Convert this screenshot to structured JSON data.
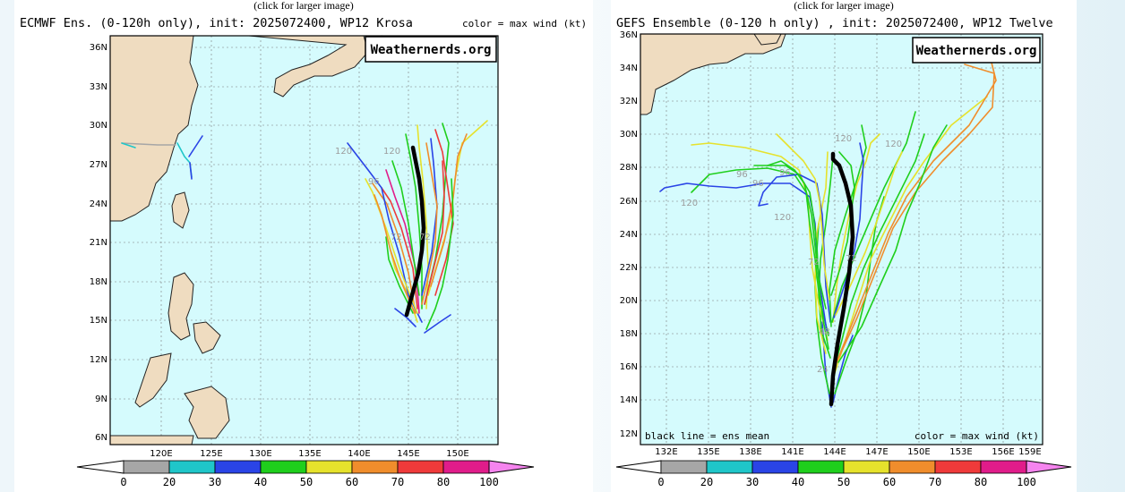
{
  "left": {
    "caption": "(click for larger image)",
    "title": "ECMWF Ens. (0-120h only), init: 2025072400, WP12 Krosa",
    "top_right_label": "color = max wind (kt)",
    "watermark": "Weathernerds.org",
    "lat_ticks": [
      "36N",
      "33N",
      "30N",
      "27N",
      "24N",
      "21N",
      "18N",
      "15N",
      "12N",
      "9N",
      "6N"
    ],
    "lon_ticks": [
      "120E",
      "125E",
      "130E",
      "135E",
      "140E",
      "145E",
      "150E"
    ],
    "hour_labels": [
      "120",
      "96",
      "120",
      "72",
      "72"
    ]
  },
  "right": {
    "caption": "(click for larger image)",
    "title": "GEFS Ensemble (0-120 h only) , init: 2025072400, WP12 Twelve",
    "bottom_left_label": "black line = ens mean",
    "bottom_right_label": "color = max wind (kt)",
    "watermark": "Weathernerds.org",
    "lat_ticks": [
      "36N",
      "34N",
      "32N",
      "30N",
      "28N",
      "26N",
      "24N",
      "22N",
      "20N",
      "18N",
      "16N",
      "14N",
      "12N"
    ],
    "lon_ticks": [
      "132E",
      "135E",
      "138E",
      "141E",
      "144E",
      "147E",
      "150E",
      "153E",
      "156E",
      "159E"
    ],
    "hour_labels": [
      "120",
      "96",
      "120",
      "96",
      "120",
      "72",
      "72",
      "48",
      "24",
      "96",
      "120"
    ]
  },
  "colorbar": {
    "labels": [
      "0",
      "20",
      "30",
      "40",
      "50",
      "60",
      "70",
      "80",
      "100"
    ],
    "colors": [
      "#a6a6a6",
      "#1fc6c9",
      "#2a44e6",
      "#1fcf1c",
      "#e6e22c",
      "#f08d2c",
      "#ef3a3a",
      "#e01c8a"
    ],
    "end_left": "#ffffff",
    "end_right": "#f584ee"
  }
}
